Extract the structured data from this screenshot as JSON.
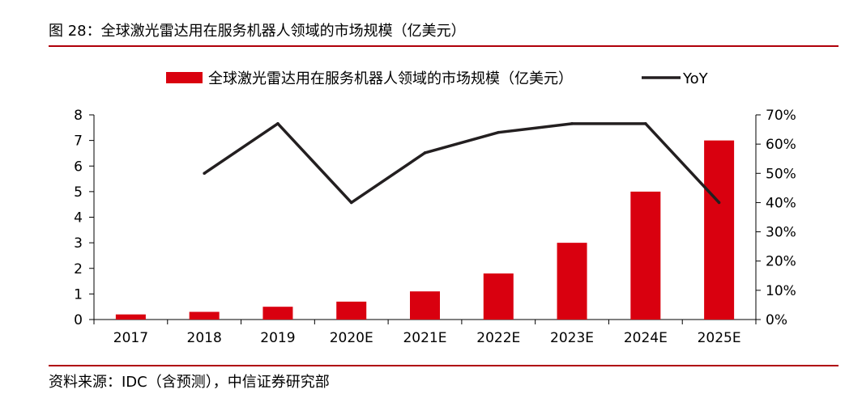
{
  "header": {
    "title": "图 28：全球激光雷达用在服务机器人领域的市场规模（亿美元）"
  },
  "footer": {
    "source": "资料来源：IDC（含预测），中信证券研究部"
  },
  "colors": {
    "bar": "#d9000f",
    "line": "#231f20",
    "rule": "#b0000a",
    "axis": "#000000"
  },
  "chart_data": {
    "type": "bar",
    "categories": [
      "2017",
      "2018",
      "2019",
      "2020E",
      "2021E",
      "2022E",
      "2023E",
      "2024E",
      "2025E"
    ],
    "series": [
      {
        "name": "全球激光雷达用在服务机器人领域的市场规模（亿美元）",
        "type": "bar",
        "axis": "left",
        "values": [
          0.2,
          0.3,
          0.5,
          0.7,
          1.1,
          1.8,
          3.0,
          5.0,
          7.0
        ]
      },
      {
        "name": "YoY",
        "type": "line",
        "axis": "right",
        "values": [
          null,
          50,
          67,
          40,
          57,
          64,
          67,
          67,
          40
        ]
      }
    ],
    "y_left": {
      "min": 0,
      "max": 8,
      "ticks": [
        "0",
        "1",
        "2",
        "3",
        "4",
        "5",
        "6",
        "7",
        "8"
      ]
    },
    "y_right": {
      "min": 0,
      "max": 70,
      "ticks": [
        "0%",
        "10%",
        "20%",
        "30%",
        "40%",
        "50%",
        "60%",
        "70%"
      ]
    },
    "grid": false,
    "legend_position": "top"
  }
}
